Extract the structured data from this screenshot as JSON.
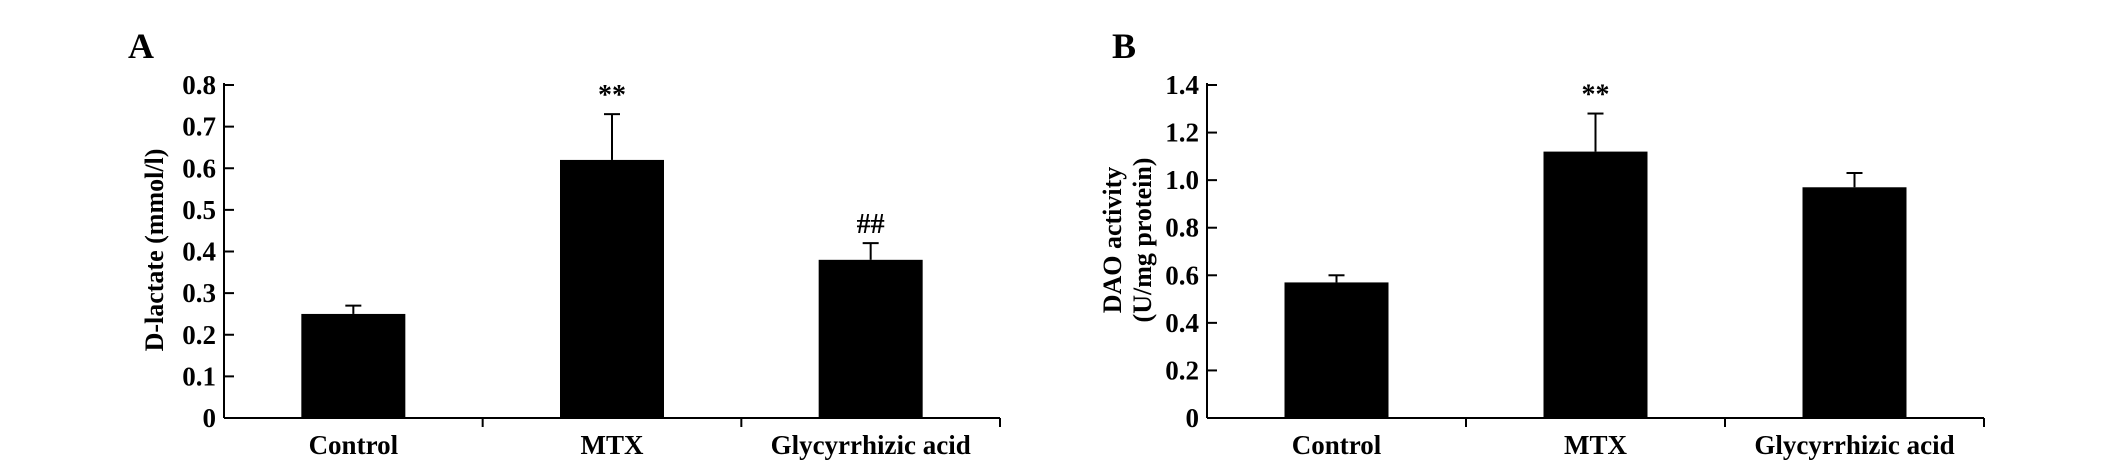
{
  "chart_data": [
    {
      "panel_label": "A",
      "type": "bar",
      "categories": [
        "Control",
        "MTX",
        "Glycyrrhizic acid"
      ],
      "values": [
        0.25,
        0.62,
        0.38
      ],
      "errors": [
        0.02,
        0.11,
        0.04
      ],
      "annotations": [
        "",
        "**",
        "##"
      ],
      "title": "",
      "xlabel": "",
      "ylabel_lines": [
        "D-lactate (mmol/l)"
      ],
      "ylim": [
        0,
        0.8
      ],
      "yticks": [
        0,
        0.1,
        0.2,
        0.3,
        0.4,
        0.5,
        0.6,
        0.7,
        0.8
      ],
      "ytick_labels": [
        "0",
        "0.1",
        "0.2",
        "0.3",
        "0.4",
        "0.5",
        "0.6",
        "0.7",
        "0.8"
      ],
      "bar_color": "#000000",
      "grid": false,
      "legend": "none"
    },
    {
      "panel_label": "B",
      "type": "bar",
      "categories": [
        "Control",
        "MTX",
        "Glycyrrhizic acid"
      ],
      "values": [
        0.57,
        1.12,
        0.97
      ],
      "errors": [
        0.03,
        0.16,
        0.06
      ],
      "annotations": [
        "",
        "**",
        ""
      ],
      "title": "",
      "xlabel": "",
      "ylabel_lines": [
        "DAO activity",
        "(U/mg protein)"
      ],
      "ylim": [
        0,
        1.4
      ],
      "yticks": [
        0,
        0.2,
        0.4,
        0.6,
        0.8,
        1.0,
        1.2,
        1.4
      ],
      "ytick_labels": [
        "0",
        "0.2",
        "0.4",
        "0.6",
        "0.8",
        "1.0",
        "1.2",
        "1.4"
      ],
      "bar_color": "#000000",
      "grid": false,
      "legend": "none"
    }
  ]
}
